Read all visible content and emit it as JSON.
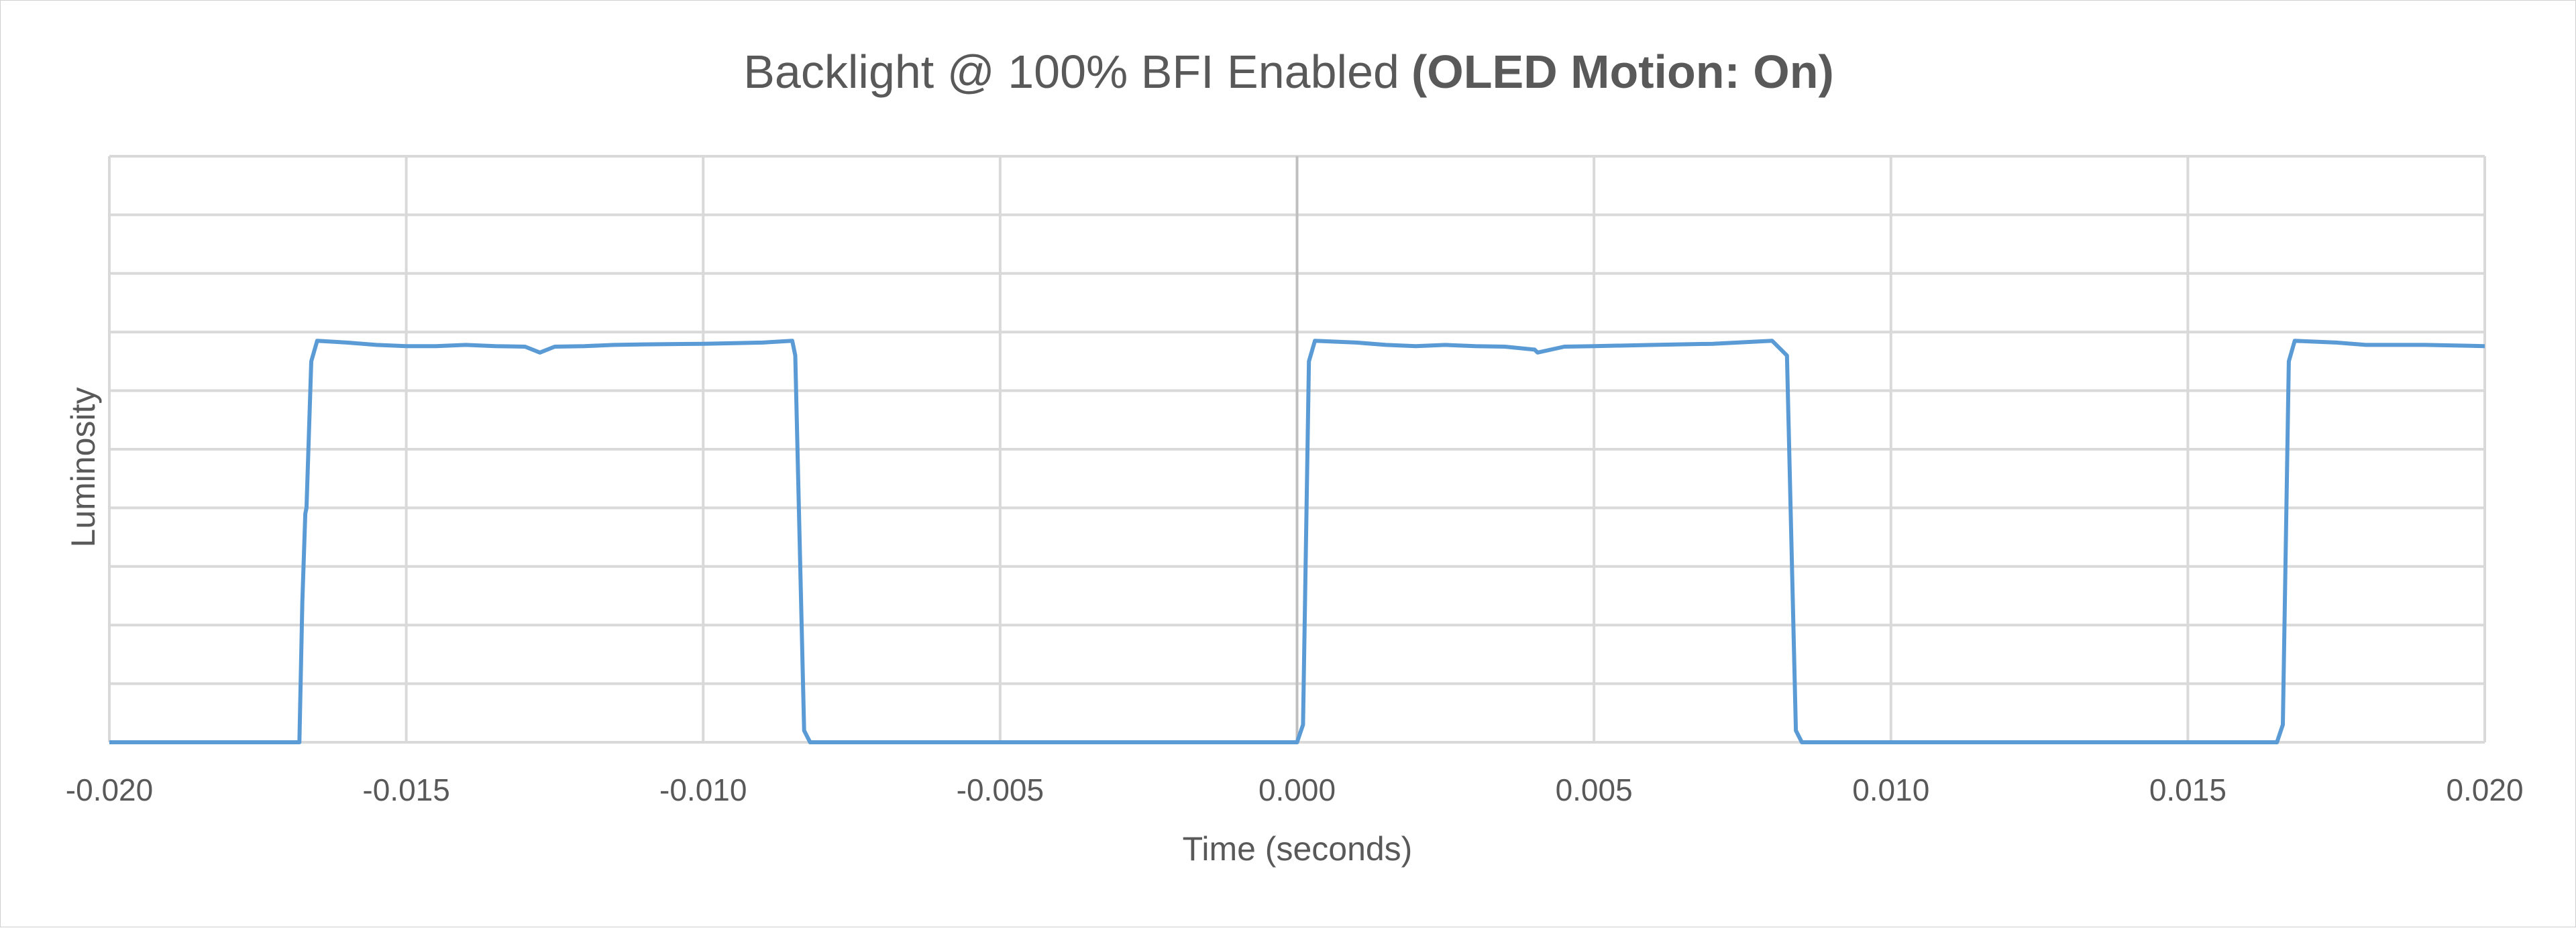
{
  "chart_data": {
    "type": "line",
    "title": "Backlight @ 100% BFI Enabled",
    "title_bold": "(OLED Motion: On)",
    "xlabel": "Time (seconds)",
    "ylabel": "Luminosity",
    "xlim": [
      -0.02,
      0.02
    ],
    "ylim": [
      0,
      10
    ],
    "x_ticks": [
      -0.02,
      -0.015,
      -0.01,
      -0.005,
      0.0,
      0.005,
      0.01,
      0.015,
      0.02
    ],
    "x_tick_labels": [
      "-0.020",
      "-0.015",
      "-0.010",
      "-0.005",
      "0.000",
      "0.005",
      "0.010",
      "0.015",
      "0.020"
    ],
    "y_gridlines": [
      0,
      1,
      2,
      3,
      4,
      5,
      6,
      7,
      8,
      9,
      10
    ],
    "y_tick_labels_shown": false,
    "grid": true,
    "legend": "none",
    "series": [
      {
        "color": "#5b9bd5",
        "points": [
          [
            -0.02,
            0.0
          ],
          [
            -0.0168,
            0.0
          ],
          [
            -0.01675,
            2.4
          ],
          [
            -0.0167,
            3.9
          ],
          [
            -0.01668,
            4.0
          ],
          [
            -0.0166,
            6.5
          ],
          [
            -0.0165,
            6.85
          ],
          [
            -0.016,
            6.82
          ],
          [
            -0.0155,
            6.78
          ],
          [
            -0.015,
            6.76
          ],
          [
            -0.0145,
            6.76
          ],
          [
            -0.014,
            6.78
          ],
          [
            -0.0135,
            6.76
          ],
          [
            -0.013,
            6.75
          ],
          [
            -0.01275,
            6.65
          ],
          [
            -0.0125,
            6.75
          ],
          [
            -0.012,
            6.76
          ],
          [
            -0.0115,
            6.78
          ],
          [
            -0.011,
            6.79
          ],
          [
            -0.01,
            6.8
          ],
          [
            -0.009,
            6.82
          ],
          [
            -0.0085,
            6.85
          ],
          [
            -0.00845,
            6.6
          ],
          [
            -0.0083,
            0.2
          ],
          [
            -0.0082,
            0.0
          ],
          [
            0.0,
            0.0
          ],
          [
            0.0001,
            0.3
          ],
          [
            0.0002,
            6.5
          ],
          [
            0.0003,
            6.85
          ],
          [
            0.001,
            6.82
          ],
          [
            0.0015,
            6.78
          ],
          [
            0.002,
            6.76
          ],
          [
            0.0025,
            6.78
          ],
          [
            0.003,
            6.76
          ],
          [
            0.0035,
            6.75
          ],
          [
            0.004,
            6.7
          ],
          [
            0.00405,
            6.65
          ],
          [
            0.0045,
            6.75
          ],
          [
            0.005,
            6.76
          ],
          [
            0.006,
            6.78
          ],
          [
            0.007,
            6.8
          ],
          [
            0.008,
            6.85
          ],
          [
            0.00825,
            6.6
          ],
          [
            0.0084,
            0.2
          ],
          [
            0.0085,
            0.0
          ],
          [
            0.0165,
            0.0
          ],
          [
            0.0166,
            0.3
          ],
          [
            0.0167,
            6.5
          ],
          [
            0.0168,
            6.85
          ],
          [
            0.0175,
            6.82
          ],
          [
            0.018,
            6.78
          ],
          [
            0.019,
            6.78
          ],
          [
            0.02,
            6.76
          ]
        ]
      }
    ]
  }
}
